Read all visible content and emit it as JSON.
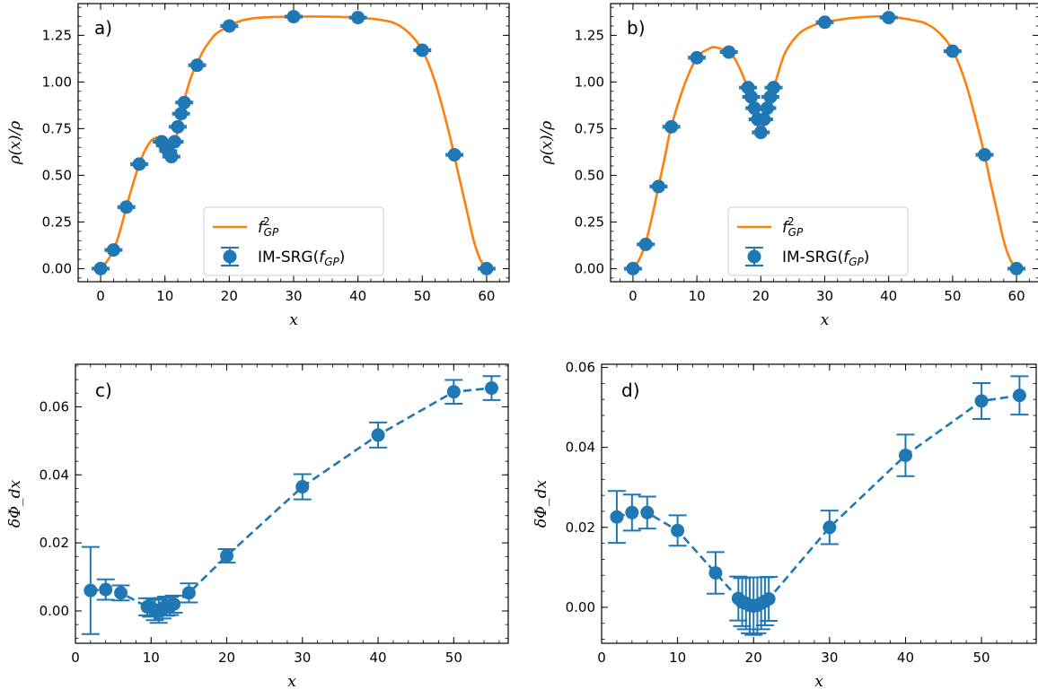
{
  "colors": {
    "density_line": "#ff7f0e",
    "points": "#1f77b4",
    "axes": "#000000"
  },
  "chart_data": [
    {
      "panel": "a)",
      "type": "line",
      "xlabel": "x",
      "ylabel": "ρ(x)/ρ",
      "xlim": [
        -3.5,
        63.5
      ],
      "ylim": [
        -0.07,
        1.42
      ],
      "xticks": [
        0,
        10,
        20,
        30,
        40,
        50,
        60
      ],
      "yticks": [
        0.0,
        0.25,
        0.5,
        0.75,
        1.0,
        1.25
      ],
      "ytick_labels": [
        "0.00",
        "0.25",
        "0.50",
        "0.75",
        "1.00",
        "1.25"
      ],
      "legend": {
        "placement": "lower center",
        "line_label": "f²_GP",
        "marker_label": "IM-SRG(f_GP)"
      },
      "line": {
        "name": "f²_GP",
        "x": [
          0,
          1,
          2,
          3,
          4,
          5,
          6,
          7,
          8,
          9,
          10,
          11,
          12,
          13,
          14,
          15,
          16,
          17,
          18,
          20,
          22,
          25,
          30,
          35,
          40,
          44,
          46,
          48,
          50,
          52,
          54,
          55,
          56,
          57,
          58,
          59,
          60
        ],
        "y": [
          0.0,
          0.04,
          0.1,
          0.2,
          0.33,
          0.45,
          0.56,
          0.64,
          0.69,
          0.7,
          0.66,
          0.61,
          0.74,
          0.9,
          1.02,
          1.1,
          1.17,
          1.22,
          1.26,
          1.3,
          1.33,
          1.345,
          1.35,
          1.35,
          1.345,
          1.33,
          1.31,
          1.26,
          1.17,
          1.0,
          0.75,
          0.6,
          0.45,
          0.3,
          0.15,
          0.05,
          0.0
        ]
      },
      "points": {
        "name": "IM-SRG(f_GP)",
        "x": [
          0,
          2,
          4,
          6,
          9.5,
          10,
          10.5,
          11,
          11.5,
          12,
          12.5,
          13,
          15,
          20,
          30,
          40,
          50,
          55,
          60
        ],
        "y": [
          0.0,
          0.1,
          0.33,
          0.56,
          0.68,
          0.66,
          0.63,
          0.6,
          0.68,
          0.76,
          0.83,
          0.89,
          1.09,
          1.3,
          1.35,
          1.345,
          1.17,
          0.61,
          0.0
        ],
        "yerr": [
          0.005,
          0.005,
          0.005,
          0.005,
          0.005,
          0.005,
          0.005,
          0.005,
          0.005,
          0.005,
          0.005,
          0.005,
          0.005,
          0.005,
          0.005,
          0.005,
          0.005,
          0.005,
          0.005
        ]
      }
    },
    {
      "panel": "b)",
      "type": "line",
      "xlabel": "x",
      "ylabel": "ρ(x)/ρ",
      "xlim": [
        -3.5,
        63.5
      ],
      "ylim": [
        -0.07,
        1.42
      ],
      "xticks": [
        0,
        10,
        20,
        30,
        40,
        50,
        60
      ],
      "yticks": [
        0.0,
        0.25,
        0.5,
        0.75,
        1.0,
        1.25
      ],
      "ytick_labels": [
        "0.00",
        "0.25",
        "0.50",
        "0.75",
        "1.00",
        "1.25"
      ],
      "legend": {
        "placement": "lower center",
        "line_label": "f²_GP",
        "marker_label": "IM-SRG(f_GP)"
      },
      "line": {
        "name": "f²_GP",
        "x": [
          0,
          1,
          2,
          3,
          4,
          5,
          6,
          8,
          10,
          12,
          13,
          15,
          16,
          17,
          18,
          19,
          20,
          21,
          22,
          23,
          24,
          26,
          28,
          30,
          35,
          40,
          44,
          46,
          48,
          50,
          52,
          54,
          55,
          56,
          57,
          58,
          59,
          60
        ],
        "y": [
          0.0,
          0.05,
          0.14,
          0.28,
          0.44,
          0.6,
          0.76,
          0.98,
          1.13,
          1.18,
          1.185,
          1.16,
          1.12,
          1.05,
          0.96,
          0.82,
          0.73,
          0.82,
          0.96,
          1.08,
          1.17,
          1.26,
          1.3,
          1.32,
          1.345,
          1.35,
          1.33,
          1.31,
          1.26,
          1.17,
          1.0,
          0.75,
          0.61,
          0.45,
          0.3,
          0.15,
          0.05,
          0.0
        ]
      },
      "points": {
        "name": "IM-SRG(f_GP)",
        "x": [
          0,
          2,
          4,
          6,
          10,
          15,
          18,
          18.5,
          19,
          19.5,
          20,
          20.5,
          21,
          21.5,
          22,
          30,
          40,
          50,
          55,
          60
        ],
        "y": [
          0.0,
          0.13,
          0.44,
          0.76,
          1.13,
          1.16,
          0.97,
          0.92,
          0.86,
          0.8,
          0.73,
          0.8,
          0.86,
          0.92,
          0.97,
          1.32,
          1.345,
          1.165,
          0.61,
          0.0
        ],
        "yerr": [
          0.005,
          0.005,
          0.005,
          0.005,
          0.005,
          0.005,
          0.005,
          0.005,
          0.005,
          0.005,
          0.005,
          0.005,
          0.005,
          0.005,
          0.005,
          0.005,
          0.005,
          0.005,
          0.005,
          0.005
        ]
      }
    },
    {
      "panel": "c)",
      "type": "line",
      "xlabel": "x",
      "ylabel": "δΦ_dx",
      "xlim": [
        0.0,
        57.2
      ],
      "ylim": [
        -0.0095,
        0.0725
      ],
      "xticks": [
        0,
        10,
        20,
        30,
        40,
        50
      ],
      "yticks": [
        0.0,
        0.02,
        0.04,
        0.06
      ],
      "ytick_labels": [
        "0.00",
        "0.02",
        "0.04",
        "0.06"
      ],
      "points": {
        "name": "",
        "dashed": true,
        "x": [
          2,
          4,
          6,
          9.5,
          10,
          10.5,
          11,
          11.5,
          12,
          12.5,
          13,
          15,
          20,
          30,
          40,
          50,
          55
        ],
        "y": [
          0.006,
          0.0063,
          0.0053,
          0.0012,
          0.001,
          0.0003,
          0.0,
          0.0008,
          0.0014,
          0.0015,
          0.002,
          0.0053,
          0.0162,
          0.0365,
          0.0517,
          0.0644,
          0.0655
        ],
        "yerr": [
          0.0128,
          0.003,
          0.0022,
          0.0025,
          0.0027,
          0.003,
          0.0035,
          0.003,
          0.0028,
          0.0027,
          0.0025,
          0.0028,
          0.002,
          0.0037,
          0.0037,
          0.0035,
          0.0035
        ]
      }
    },
    {
      "panel": "d)",
      "type": "line",
      "xlabel": "x",
      "ylabel": "δΦ_dx",
      "xlim": [
        0.0,
        57.2
      ],
      "ylim": [
        -0.009,
        0.0608
      ],
      "xticks": [
        0,
        10,
        20,
        30,
        40,
        50
      ],
      "yticks": [
        0.0,
        0.02,
        0.04,
        0.06
      ],
      "ytick_labels": [
        "0.00",
        "0.02",
        "0.04",
        "0.06"
      ],
      "points": {
        "name": "",
        "dashed": true,
        "x": [
          2,
          4,
          6,
          10,
          15,
          18,
          18.5,
          19,
          19.5,
          20,
          20.5,
          21,
          21.5,
          22,
          30,
          40,
          50,
          55
        ],
        "y": [
          0.0226,
          0.0237,
          0.0237,
          0.0192,
          0.0086,
          0.0022,
          0.0013,
          0.001,
          0.0005,
          0.0003,
          0.0005,
          0.001,
          0.0015,
          0.0021,
          0.02,
          0.038,
          0.0516,
          0.053
        ],
        "yerr": [
          0.0065,
          0.0045,
          0.004,
          0.0038,
          0.0052,
          0.0055,
          0.006,
          0.0065,
          0.007,
          0.0072,
          0.007,
          0.0065,
          0.006,
          0.0055,
          0.0042,
          0.0052,
          0.0045,
          0.0048
        ]
      }
    }
  ]
}
